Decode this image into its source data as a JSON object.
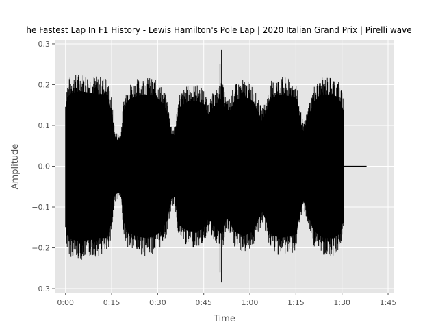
{
  "chart_data": {
    "type": "line",
    "title": "he Fastest Lap In F1 History - Lewis Hamilton's Pole Lap | 2020 Italian Grand Prix | Pirelli wave",
    "xlabel": "Time",
    "ylabel": "Amplitude",
    "xlim": [
      -3.5,
      107
    ],
    "ylim": [
      -0.31,
      0.31
    ],
    "x_ticks": [
      {
        "value": 0,
        "label": "0:00"
      },
      {
        "value": 15,
        "label": "0:15"
      },
      {
        "value": 30,
        "label": "0:30"
      },
      {
        "value": 45,
        "label": "0:45"
      },
      {
        "value": 60,
        "label": "1:00"
      },
      {
        "value": 75,
        "label": "1:15"
      },
      {
        "value": 90,
        "label": "1:30"
      },
      {
        "value": 105,
        "label": "1:45"
      }
    ],
    "y_ticks": [
      {
        "value": 0.3,
        "label": "0.3"
      },
      {
        "value": 0.2,
        "label": "0.2"
      },
      {
        "value": 0.1,
        "label": "0.1"
      },
      {
        "value": 0.0,
        "label": "0.0"
      },
      {
        "value": -0.1,
        "label": "−0.1"
      },
      {
        "value": -0.2,
        "label": "−0.2"
      },
      {
        "value": -0.3,
        "label": "−0.3"
      }
    ],
    "grid": true,
    "background": "#e5e5e5",
    "line_color": "#000000",
    "grid_color": "#ffffff",
    "series": [
      {
        "signal_end": 90.5,
        "silence_end": 98,
        "envelope": [
          [
            0,
            0.17
          ],
          [
            0.5,
            0.21
          ],
          [
            2,
            0.225
          ],
          [
            5,
            0.23
          ],
          [
            8,
            0.225
          ],
          [
            11,
            0.22
          ],
          [
            13.5,
            0.22
          ],
          [
            15,
            0.17
          ],
          [
            16,
            0.09
          ],
          [
            17,
            0.08
          ],
          [
            18,
            0.085
          ],
          [
            19,
            0.17
          ],
          [
            20,
            0.2
          ],
          [
            23,
            0.215
          ],
          [
            26,
            0.22
          ],
          [
            29,
            0.215
          ],
          [
            31,
            0.2
          ],
          [
            33,
            0.17
          ],
          [
            34.5,
            0.1
          ],
          [
            35.5,
            0.095
          ],
          [
            37,
            0.18
          ],
          [
            40,
            0.2
          ],
          [
            43,
            0.2
          ],
          [
            45,
            0.19
          ],
          [
            46.5,
            0.16
          ],
          [
            48,
            0.18
          ],
          [
            50,
            0.2
          ],
          [
            51,
            0.21
          ],
          [
            52.5,
            0.16
          ],
          [
            53.5,
            0.17
          ],
          [
            55,
            0.2
          ],
          [
            58,
            0.215
          ],
          [
            61,
            0.2
          ],
          [
            64,
            0.14
          ],
          [
            65,
            0.16
          ],
          [
            67,
            0.21
          ],
          [
            70,
            0.22
          ],
          [
            73,
            0.215
          ],
          [
            75,
            0.21
          ],
          [
            76.5,
            0.14
          ],
          [
            77.5,
            0.1
          ],
          [
            79,
            0.15
          ],
          [
            81,
            0.2
          ],
          [
            84,
            0.22
          ],
          [
            87,
            0.22
          ],
          [
            89,
            0.21
          ],
          [
            90.5,
            0.17
          ]
        ],
        "spikes": [
          {
            "x": 50.8,
            "min": -0.285,
            "max": 0.285
          },
          {
            "x": 50.3,
            "min": -0.26,
            "max": 0.25
          }
        ]
      }
    ]
  }
}
